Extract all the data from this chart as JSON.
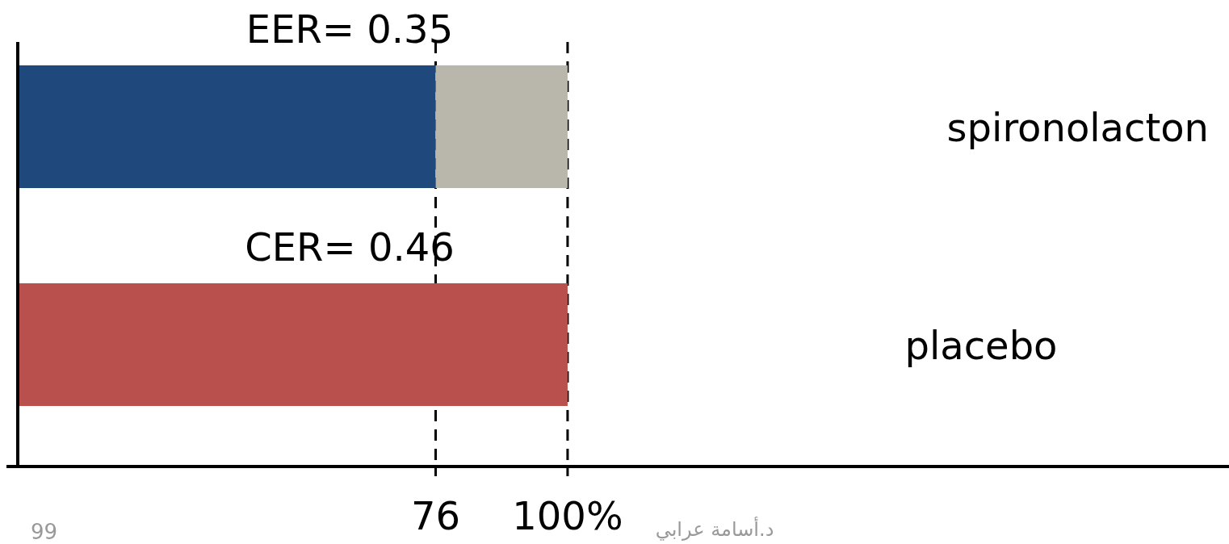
{
  "chart_data": {
    "type": "bar",
    "orientation": "horizontal",
    "stacked": true,
    "categories": [
      "spironolacton",
      "placebo"
    ],
    "series": [
      {
        "colors": [
          "#1f497d",
          "#b9504d"
        ],
        "values": [
          76,
          100
        ]
      },
      {
        "color": "#b9b7ac",
        "values": [
          24,
          null
        ]
      }
    ],
    "xlim": [
      0,
      220
    ],
    "xticks": [
      {
        "value": 76,
        "label": "76"
      },
      {
        "value": 100,
        "label": "100%"
      }
    ],
    "tick_labels": "x",
    "ref_lines": [
      {
        "axis": "x",
        "value": 76,
        "line_style": "dashed"
      },
      {
        "axis": "x",
        "value": 100,
        "line_style": "dashed"
      }
    ],
    "annotations": [
      "EER= 0.35",
      "CER= 0.46",
      "99",
      "د.أسامة عرابي"
    ]
  }
}
